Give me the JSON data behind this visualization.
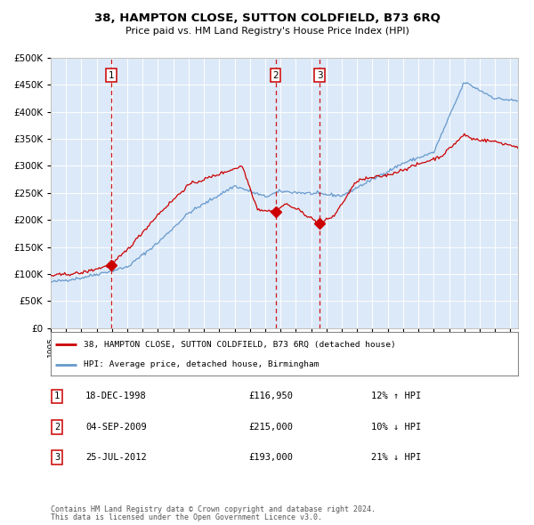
{
  "title": "38, HAMPTON CLOSE, SUTTON COLDFIELD, B73 6RQ",
  "subtitle": "Price paid vs. HM Land Registry's House Price Index (HPI)",
  "legend_line1": "38, HAMPTON CLOSE, SUTTON COLDFIELD, B73 6RQ (detached house)",
  "legend_line2": "HPI: Average price, detached house, Birmingham",
  "footer1": "Contains HM Land Registry data © Crown copyright and database right 2024.",
  "footer2": "This data is licensed under the Open Government Licence v3.0.",
  "table": [
    {
      "num": "1",
      "date": "18-DEC-1998",
      "price": "£116,950",
      "hpi": "12% ↑ HPI"
    },
    {
      "num": "2",
      "date": "04-SEP-2009",
      "price": "£215,000",
      "hpi": "10% ↓ HPI"
    },
    {
      "num": "3",
      "date": "25-JUL-2012",
      "price": "£193,000",
      "hpi": "21% ↓ HPI"
    }
  ],
  "sale_dates_decimal": [
    1998.96,
    2009.67,
    2012.56
  ],
  "sale_prices": [
    116950,
    215000,
    193000
  ],
  "background_color": "#dce9f8",
  "grid_color": "#ffffff",
  "red_line_color": "#cc0000",
  "blue_line_color": "#6699cc",
  "marker_color": "#cc0000",
  "dashed_line_color": "#cc0000",
  "ylim": [
    0,
    500000
  ],
  "yticks": [
    0,
    50000,
    100000,
    150000,
    200000,
    250000,
    300000,
    350000,
    400000,
    450000,
    500000
  ],
  "xlim_start": 1995.0,
  "xlim_end": 2025.5
}
